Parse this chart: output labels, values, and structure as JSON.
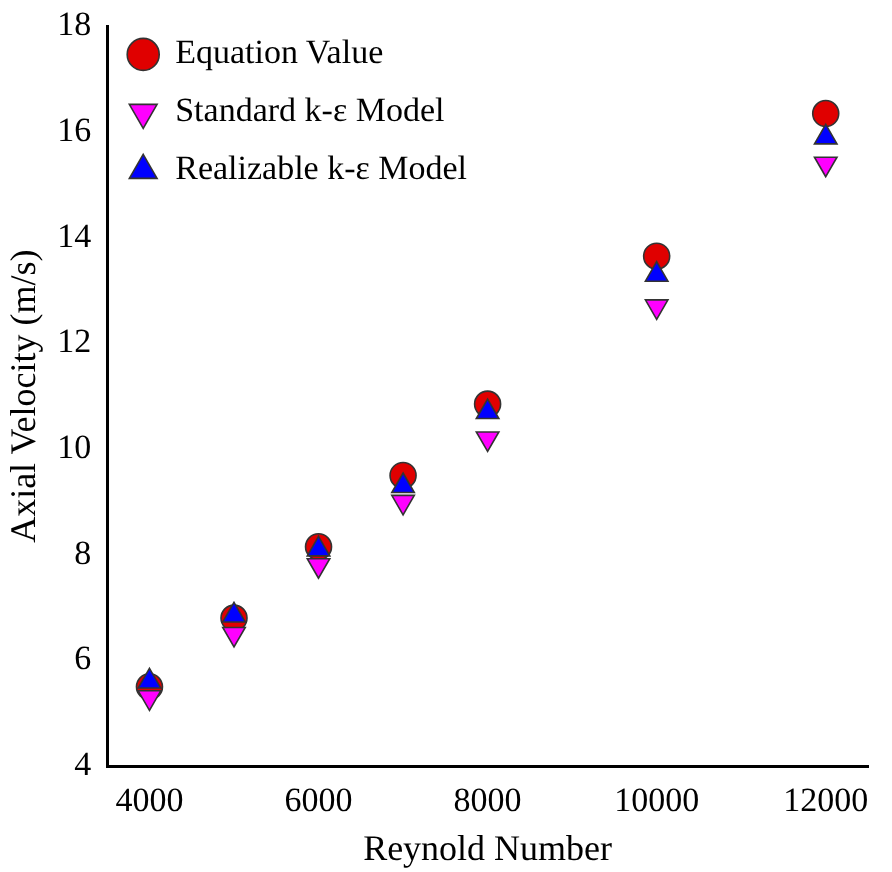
{
  "chart_data": {
    "type": "scatter",
    "xlabel": "Reynold Number",
    "ylabel": "Axial Velocity (m/s)",
    "x": [
      4000,
      5000,
      6000,
      7000,
      8000,
      10000,
      12000
    ],
    "series": [
      {
        "name": "Equation Value",
        "color": "#e00000",
        "marker": "circle",
        "values": [
          5.5,
          6.8,
          8.15,
          9.5,
          10.85,
          13.65,
          16.35
        ]
      },
      {
        "name": "Standard k-ε Model",
        "color": "#ff00ff",
        "marker": "triangle-down",
        "values": [
          5.3,
          6.5,
          7.8,
          9.0,
          10.2,
          12.7,
          15.4
        ]
      },
      {
        "name": "Realizable k-ε Model",
        "color": "#0000ff",
        "marker": "triangle",
        "values": [
          5.6,
          6.85,
          8.1,
          9.3,
          10.7,
          13.3,
          15.9
        ]
      }
    ],
    "xlim": [
      3500,
      12500
    ],
    "xticks": [
      4000,
      6000,
      8000,
      10000,
      12000
    ],
    "ylim": [
      4,
      18
    ],
    "yticks": [
      4,
      6,
      8,
      10,
      12,
      14,
      16,
      18
    ],
    "grid": false,
    "legend": "top left"
  }
}
